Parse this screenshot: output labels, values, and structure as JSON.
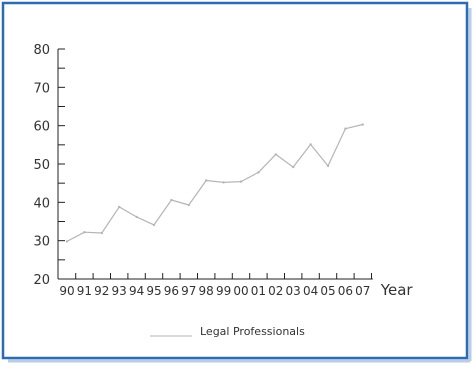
{
  "chart_data": {
    "type": "line",
    "title": "",
    "xlabel": "Year",
    "ylabel": "",
    "categories": [
      "90",
      "91",
      "92",
      "93",
      "94",
      "95",
      "96",
      "97",
      "98",
      "99",
      "00",
      "01",
      "02",
      "03",
      "04",
      "05",
      "06",
      "07"
    ],
    "yticks": [
      20,
      30,
      40,
      50,
      60,
      70,
      80
    ],
    "ylim": [
      20,
      80
    ],
    "grid": false,
    "legend_position": "bottom",
    "series": [
      {
        "name": "Legal Professionals",
        "values": [
          29.8,
          32.2,
          32.0,
          38.8,
          36.2,
          34.1,
          40.6,
          39.3,
          45.7,
          45.2,
          45.4,
          47.8,
          52.5,
          49.2,
          55.1,
          49.5,
          59.2,
          60.3
        ],
        "color": "#b5b5b5"
      }
    ]
  },
  "colors": {
    "frame_border": "#2d6cb5",
    "axis": "#222222"
  }
}
